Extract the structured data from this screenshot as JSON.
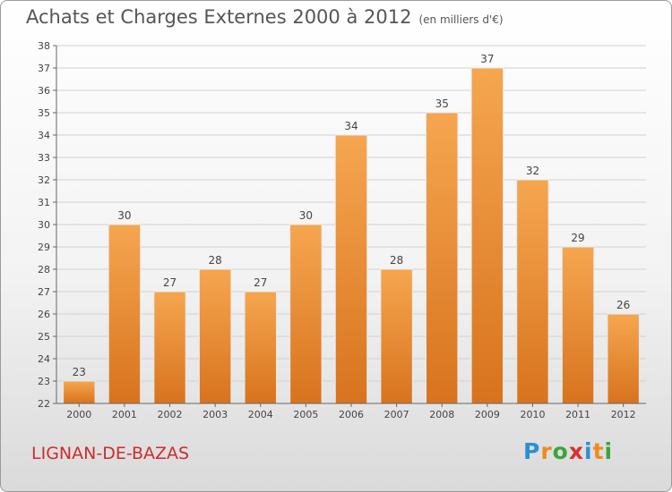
{
  "title": "Achats et Charges Externes 2000 à 2012",
  "unit": "(en milliers d'€)",
  "commune": "LIGNAN-DE-BAZAS",
  "logo": {
    "letters": [
      "P",
      "r",
      "o",
      "x",
      "i",
      "t",
      "i"
    ],
    "colors": [
      "#2b8fd6",
      "#f08a1c",
      "#3aa63a",
      "#d9322f",
      "#2b8fd6",
      "#f08a1c",
      "#3aa63a"
    ]
  },
  "colors": {
    "bar": "#f19b3f",
    "bar_dark": "#e07d26",
    "grid": "#d0d0d0",
    "axis": "#666666"
  },
  "chart_data": {
    "type": "bar",
    "categories": [
      "2000",
      "2001",
      "2002",
      "2003",
      "2004",
      "2005",
      "2006",
      "2007",
      "2008",
      "2009",
      "2010",
      "2011",
      "2012"
    ],
    "values": [
      23,
      30,
      27,
      28,
      27,
      30,
      34,
      28,
      35,
      37,
      32,
      29,
      26
    ],
    "ylim": [
      22,
      38
    ],
    "ytick_step": 1,
    "grid": true
  }
}
